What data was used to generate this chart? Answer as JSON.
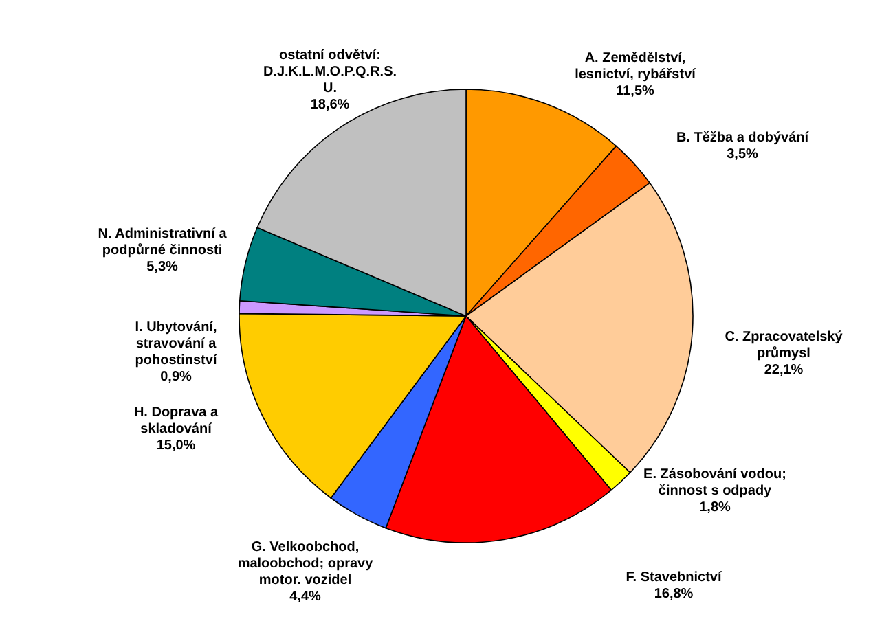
{
  "chart_data": {
    "type": "pie",
    "categories": [
      "A. Zemědělství, lesnictví, rybářství",
      "B. Těžba a dobývání",
      "C. Zpracovatelský průmysl",
      "E. Zásobování vodou; činnost s odpady",
      "F. Stavebnictví",
      "G. Velkoobchod, maloobchod; opravy motor. vozidel",
      "H. Doprava a skladování",
      "I. Ubytování, stravování a pohostinství",
      "N. Administrativní a podpůrné činnosti",
      "ostatní odvětví: D.J.K.L.M.O.P.Q.R.S. U."
    ],
    "values": [
      11.5,
      3.5,
      22.1,
      1.8,
      16.8,
      4.4,
      15.0,
      0.9,
      5.3,
      18.6
    ],
    "value_labels": [
      "11,5%",
      "3,5%",
      "22,1%",
      "1,8%",
      "16,8%",
      "4,4%",
      "15,0%",
      "0,9%",
      "5,3%",
      "18,6%"
    ],
    "colors": [
      "#ff9900",
      "#ff6600",
      "#ffcc99",
      "#ffff00",
      "#ff0000",
      "#3366ff",
      "#ffcc00",
      "#cc99ff",
      "#008080",
      "#c0c0c0"
    ]
  }
}
